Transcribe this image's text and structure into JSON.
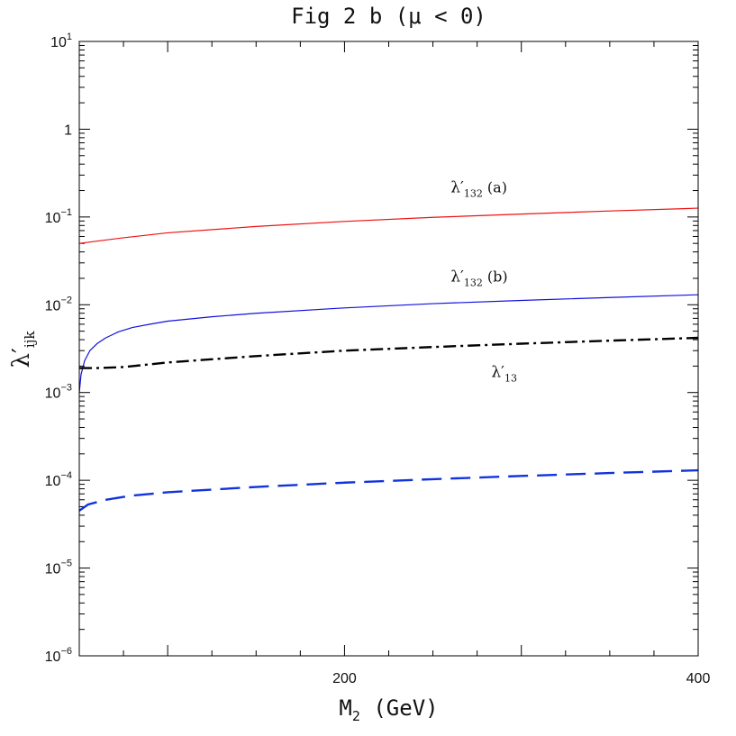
{
  "chart_data": {
    "type": "line",
    "title": "Fig 2 b (μ < 0)",
    "xlabel": "M",
    "xlabel_sub": "2",
    "xlabel_unit": "(GeV)",
    "ylabel": "λ′",
    "ylabel_sub": "ijk",
    "xlim": [
      50,
      400
    ],
    "ylim": [
      1e-06,
      10
    ],
    "yscale": "log",
    "x_ticks": [
      {
        "value": 200,
        "label": "200"
      },
      {
        "value": 400,
        "label": "400"
      }
    ],
    "y_ticks": [
      {
        "value": 1e-06,
        "base": "10",
        "exp": "−6"
      },
      {
        "value": 1e-05,
        "base": "10",
        "exp": "−5"
      },
      {
        "value": 0.0001,
        "base": "10",
        "exp": "−4"
      },
      {
        "value": 0.001,
        "base": "10",
        "exp": "−3"
      },
      {
        "value": 0.01,
        "base": "10",
        "exp": "−2"
      },
      {
        "value": 0.1,
        "base": "10",
        "exp": "−1"
      },
      {
        "value": 1,
        "base": "1",
        "exp": ""
      },
      {
        "value": 10,
        "base": "10",
        "exp": "1"
      }
    ],
    "series": [
      {
        "color": "#ee1111",
        "dash": "solid",
        "width": 1.2,
        "x": [
          50,
          75,
          100,
          150,
          200,
          250,
          300,
          350,
          400
        ],
        "y": [
          0.05,
          0.058,
          0.066,
          0.078,
          0.089,
          0.099,
          0.108,
          0.117,
          0.126
        ]
      },
      {
        "color": "#1111dd",
        "dash": "solid",
        "width": 1.2,
        "x": [
          50,
          51,
          53,
          56,
          60,
          65,
          72,
          80,
          90,
          100,
          125,
          150,
          200,
          250,
          300,
          350,
          400
        ],
        "y": [
          0.001,
          0.0016,
          0.0023,
          0.003,
          0.0036,
          0.0042,
          0.0049,
          0.0055,
          0.006,
          0.0065,
          0.0073,
          0.008,
          0.0092,
          0.0103,
          0.0112,
          0.0121,
          0.013
        ]
      },
      {
        "color": "#000000",
        "dash": "dashdot",
        "width": 2.4,
        "x": [
          50,
          60,
          75,
          100,
          150,
          200,
          250,
          300,
          350,
          400
        ],
        "y": [
          0.0019,
          0.0019,
          0.00195,
          0.0022,
          0.0026,
          0.003,
          0.0033,
          0.0036,
          0.0039,
          0.0042
        ]
      },
      {
        "color": "#1133dd",
        "dash": "dashed",
        "width": 2.4,
        "x": [
          50,
          55,
          65,
          80,
          100,
          150,
          200,
          250,
          300,
          350,
          400
        ],
        "y": [
          4.5e-05,
          5.3e-05,
          6e-05,
          6.7e-05,
          7.3e-05,
          8.4e-05,
          9.4e-05,
          0.000103,
          0.000112,
          0.000121,
          0.00013
        ]
      }
    ],
    "annotations": [
      {
        "text": "λ′",
        "sub": "132",
        "suffix": "(a)",
        "x": 260,
        "y": 0.19
      },
      {
        "text": "λ′",
        "sub": "132",
        "suffix": "(b)",
        "x": 260,
        "y": 0.0185
      },
      {
        "text": "λ′",
        "sub": "13",
        "suffix": "",
        "x": 283,
        "y": 0.0015
      }
    ]
  }
}
